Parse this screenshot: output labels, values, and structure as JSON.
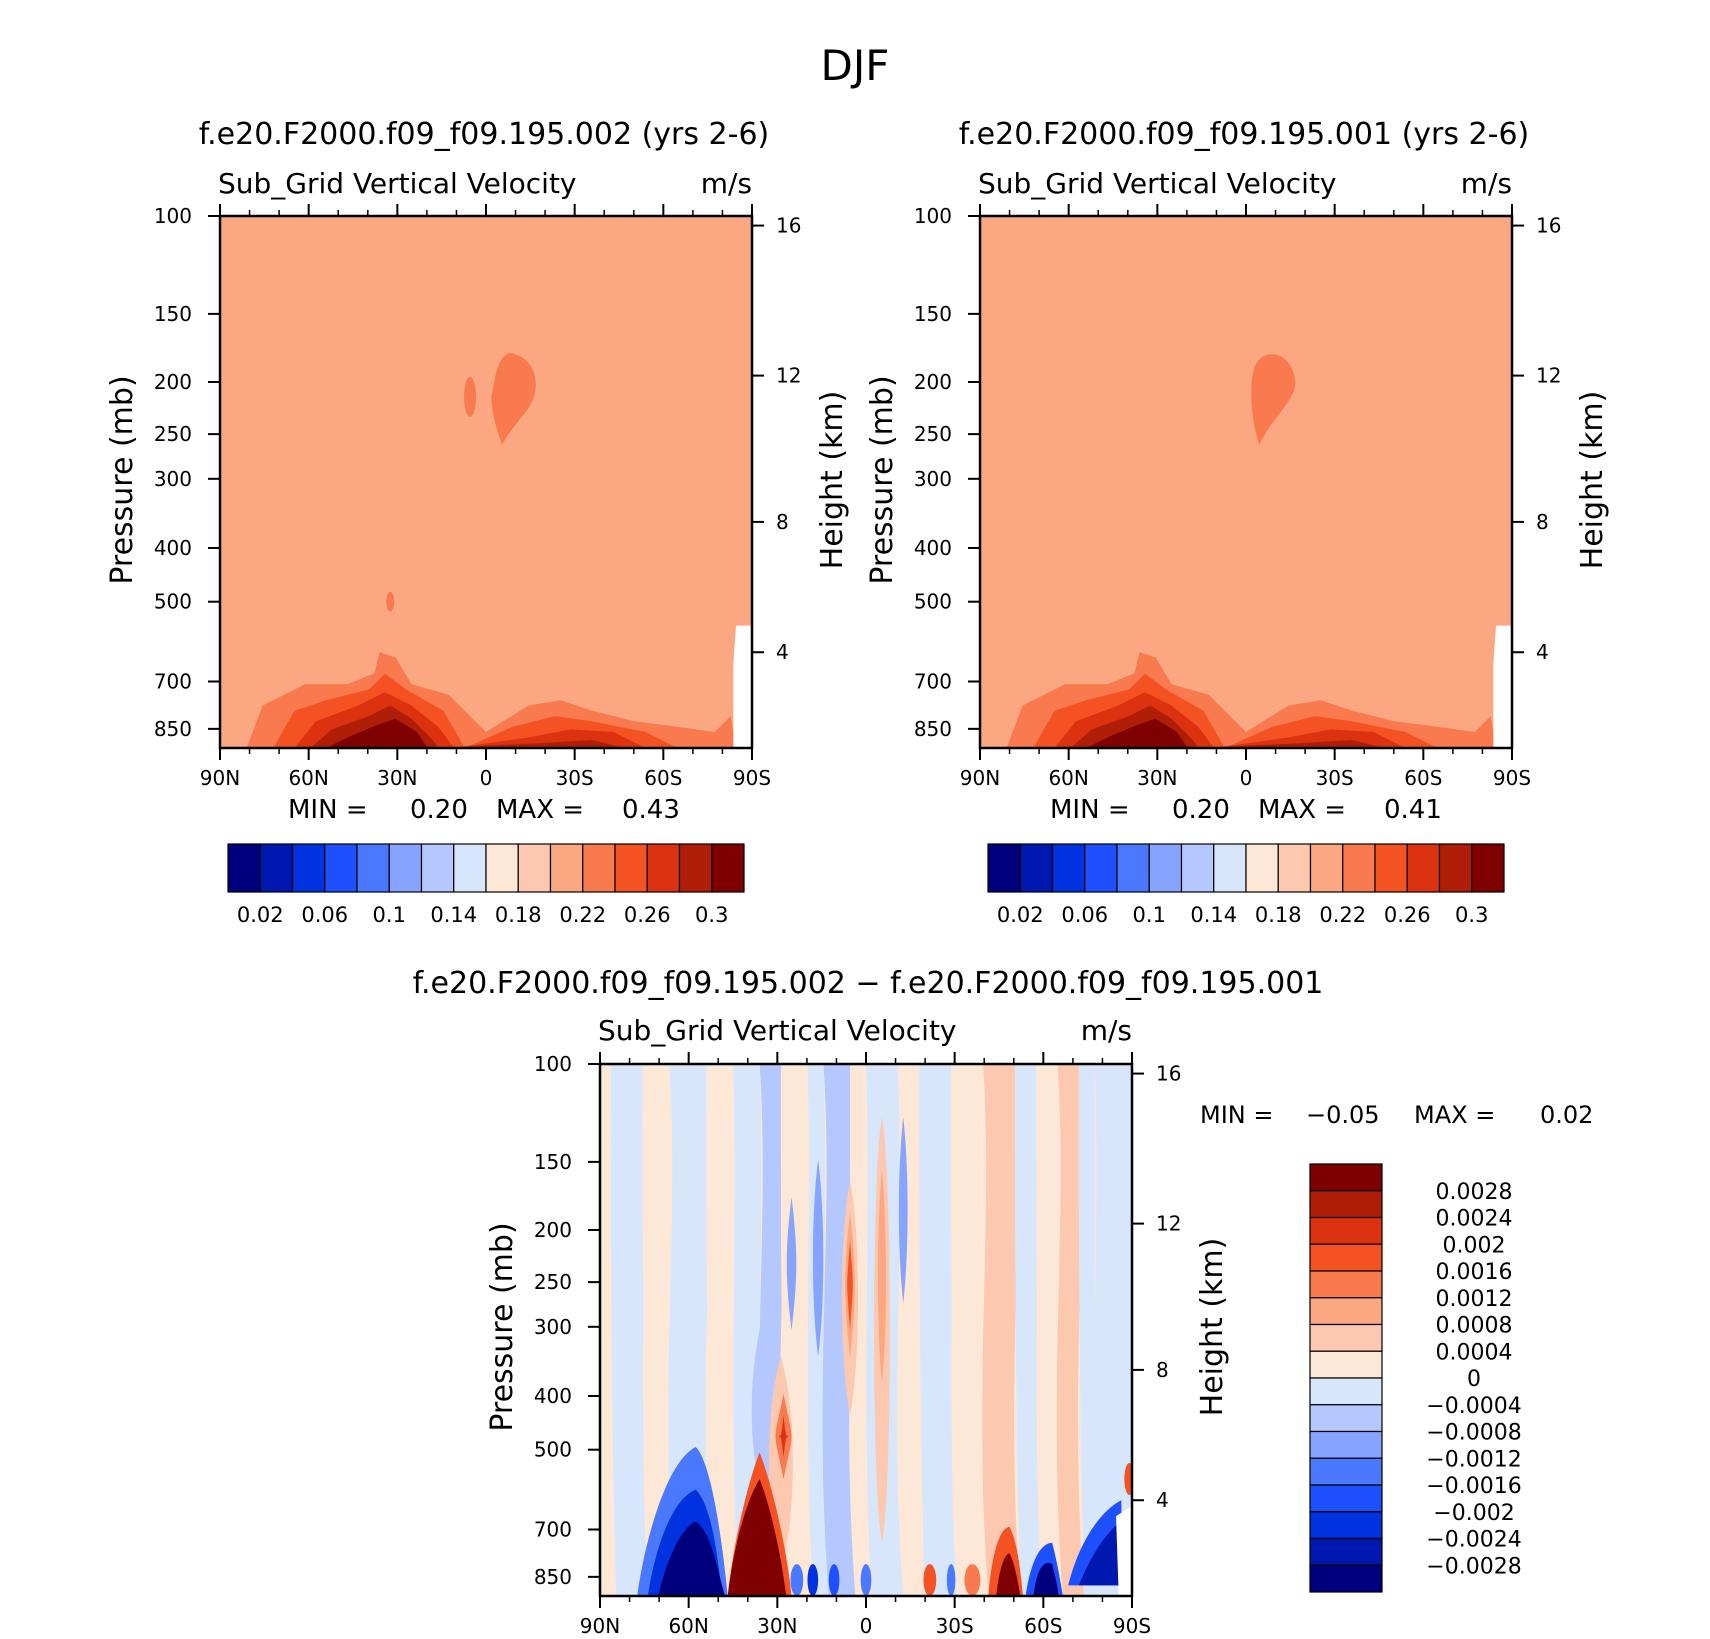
{
  "title": "DJF",
  "chart_data": [
    {
      "type": "heatmap",
      "title": "f.e20.F2000.f09_f09.195.002 (yrs 2-6)",
      "subtitle_left": "Sub_Grid Vertical Velocity",
      "units": "m/s",
      "ylabel": "Pressure (mb)",
      "y2label": "Height (km)",
      "x_ticks": [
        "90N",
        "60N",
        "30N",
        "0",
        "30S",
        "60S",
        "90S"
      ],
      "y_ticks": [
        "100",
        "150",
        "200",
        "250",
        "300",
        "400",
        "500",
        "700",
        "850"
      ],
      "y2_ticks": [
        "16",
        "12",
        "8",
        "4"
      ],
      "stats": {
        "min_label": "MIN =",
        "min_value": "0.20",
        "max_label": "MAX =",
        "max_value": "0.43"
      },
      "colorbar_labels": [
        "0.02",
        "0.06",
        "0.1",
        "0.14",
        "0.18",
        "0.22",
        "0.26",
        "0.3"
      ],
      "background_value": 0.22,
      "near_surface_max": 0.43
    },
    {
      "type": "heatmap",
      "title": "f.e20.F2000.f09_f09.195.001 (yrs 2-6)",
      "subtitle_left": "Sub_Grid Vertical Velocity",
      "units": "m/s",
      "ylabel": "Pressure (mb)",
      "y2label": "Height (km)",
      "x_ticks": [
        "90N",
        "60N",
        "30N",
        "0",
        "30S",
        "60S",
        "90S"
      ],
      "y_ticks": [
        "100",
        "150",
        "200",
        "250",
        "300",
        "400",
        "500",
        "700",
        "850"
      ],
      "y2_ticks": [
        "16",
        "12",
        "8",
        "4"
      ],
      "stats": {
        "min_label": "MIN =",
        "min_value": "0.20",
        "max_label": "MAX =",
        "max_value": "0.41"
      },
      "colorbar_labels": [
        "0.02",
        "0.06",
        "0.1",
        "0.14",
        "0.18",
        "0.22",
        "0.26",
        "0.3"
      ],
      "background_value": 0.22,
      "near_surface_max": 0.41
    },
    {
      "type": "heatmap",
      "title": "f.e20.F2000.f09_f09.195.002 − f.e20.F2000.f09_f09.195.001",
      "subtitle_left": "Sub_Grid Vertical Velocity",
      "units": "m/s",
      "ylabel": "Pressure (mb)",
      "y2label": "Height (km)",
      "x_ticks": [
        "90N",
        "60N",
        "30N",
        "0",
        "30S",
        "60S",
        "90S"
      ],
      "y_ticks": [
        "100",
        "150",
        "200",
        "250",
        "300",
        "400",
        "500",
        "700",
        "850"
      ],
      "y2_ticks": [
        "16",
        "12",
        "8",
        "4"
      ],
      "stats": {
        "min_label": "MIN =",
        "min_value": "−0.05",
        "max_label": "MAX =",
        "max_value": "0.02"
      },
      "colorbar_labels": [
        "0.0028",
        "0.0024",
        "0.002",
        "0.0016",
        "0.0012",
        "0.0008",
        "0.0004",
        "0",
        "−0.0004",
        "−0.0008",
        "−0.0012",
        "−0.0016",
        "−0.002",
        "−0.0024",
        "−0.0028"
      ]
    }
  ],
  "palettes": {
    "absolute": [
      "#00007f",
      "#0018b0",
      "#0032e0",
      "#1e50ff",
      "#4a78ff",
      "#86a4ff",
      "#b4c8ff",
      "#d8e6fb",
      "#fde8d8",
      "#fcc9b0",
      "#fba882",
      "#fa7a50",
      "#f55224",
      "#dc3210",
      "#b01e08",
      "#7f0000"
    ],
    "difference": [
      "#7f0000",
      "#b01e08",
      "#dc3210",
      "#f55224",
      "#fa7a50",
      "#fba882",
      "#fcc9b0",
      "#fde8d8",
      "#d8e6fb",
      "#b4c8ff",
      "#86a4ff",
      "#4a78ff",
      "#1e50ff",
      "#0032e0",
      "#0018b0",
      "#00007f"
    ]
  }
}
